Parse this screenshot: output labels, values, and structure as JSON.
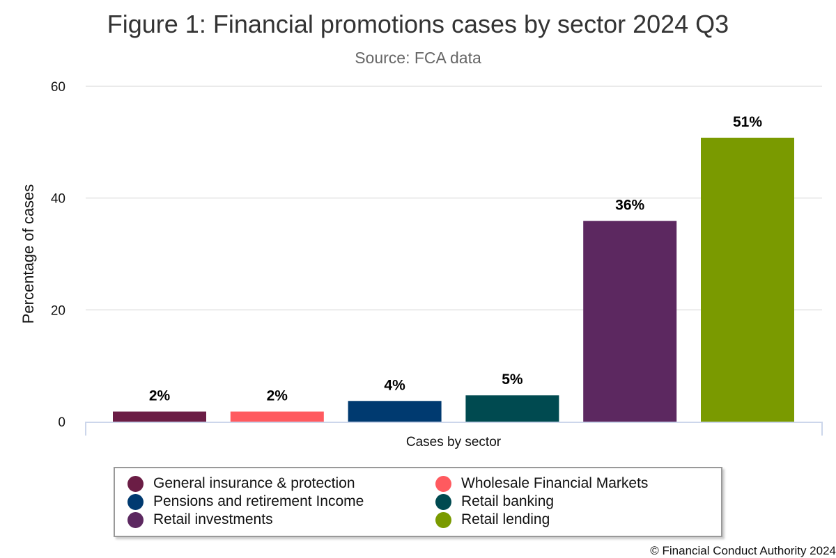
{
  "chart_data": {
    "type": "bar",
    "title": "Figure 1: Financial promotions cases by sector 2024 Q3",
    "subtitle": "Source: FCA data",
    "xlabel": "Cases by sector",
    "ylabel": "Percentage of cases",
    "ylim": [
      0,
      60
    ],
    "yticks": [
      "0",
      "20",
      "40",
      "60"
    ],
    "grid": true,
    "legend_position": "bottom",
    "categories": [
      "General insurance & protection",
      "Wholesale Financial Markets",
      "Pensions and retirement Income",
      "Retail banking",
      "Retail investments",
      "Retail lending"
    ],
    "values": [
      1.8,
      1.8,
      3.7,
      4.7,
      35.9,
      50.8
    ],
    "data_labels": [
      "2%",
      "2%",
      "4%",
      "5%",
      "36%",
      "51%"
    ],
    "colors": [
      "#6b1d45",
      "#ff5a5f",
      "#003a70",
      "#004a50",
      "#5c2860",
      "#7a9a00"
    ]
  },
  "legend_order": [
    0,
    1,
    2,
    3,
    4,
    5
  ],
  "copyright": "© Financial Conduct Authority 2024"
}
